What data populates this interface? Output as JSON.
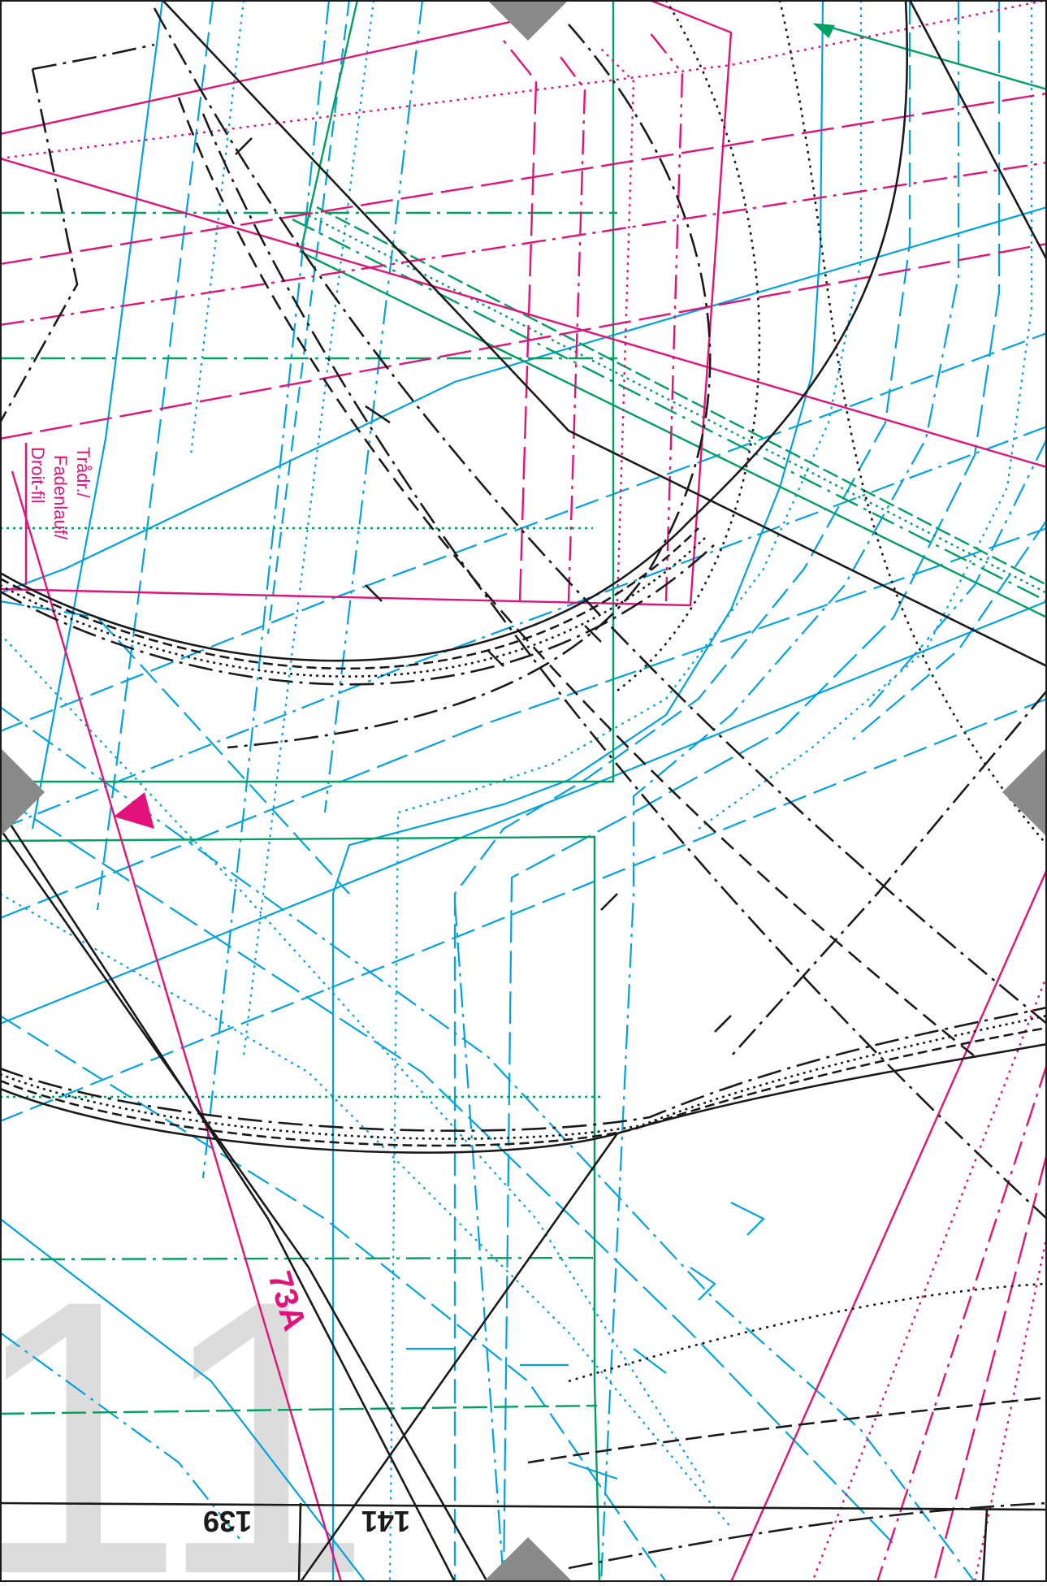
{
  "sheet": {
    "page_number": "11",
    "piece_number": "73A",
    "grainline_label": [
      "Trådr./",
      "Fadenlauf/",
      "Droit-fil"
    ],
    "size_labels": [
      "139",
      "141"
    ]
  },
  "colors": {
    "background": "#ffffff",
    "black": "#1a1a1a",
    "cyan": "#00a3e0",
    "magenta": "#e2127a",
    "green": "#00a060",
    "grey_marker": "#8a8a8a",
    "page_number_grey": "#dcdcdc"
  }
}
